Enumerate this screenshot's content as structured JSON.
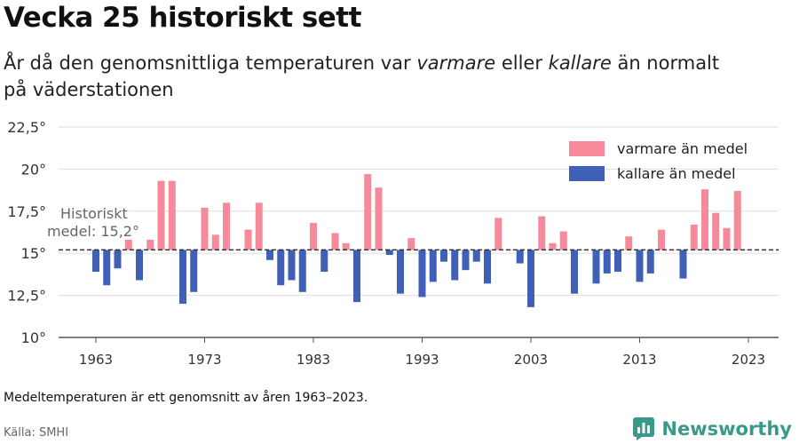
{
  "title": "Vecka 25 historiskt sett",
  "subtitle": {
    "part1": "År då den genomsnittliga temperaturen var ",
    "warm_word": "varmare",
    "part2": " eller ",
    "cold_word": "kallare",
    "part3": " än normalt",
    "line2": "på väderstationen"
  },
  "footnote": "Medeltemperaturen är ett genomsnitt av åren 1963–2023.",
  "source": "Källa: SMHI",
  "brand": {
    "name": "Newsworthy",
    "icon": "bar-chart-logo-icon"
  },
  "colors": {
    "warm": "#f78a9a",
    "cold": "#4060b8",
    "grid": "#dddddd",
    "axis": "#555555",
    "text": "#333333"
  },
  "chart_data": {
    "type": "bar",
    "baseline": 15.2,
    "baseline_label_line1": "Historiskt",
    "baseline_label_line2": "medel: 15,2°",
    "ylim": [
      10,
      22.5
    ],
    "yticks": [
      10,
      12.5,
      15,
      17.5,
      20,
      22.5
    ],
    "ytick_labels": [
      "10°",
      "12,5°",
      "15°",
      "17,5°",
      "20°",
      "22,5°"
    ],
    "xticks": [
      1963,
      1973,
      1983,
      1993,
      2003,
      2013,
      2023
    ],
    "xtick_labels": [
      "1963",
      "1973",
      "1983",
      "1993",
      "2003",
      "2013",
      "2023"
    ],
    "legend": {
      "position": "top-right",
      "items": [
        {
          "label": "varmare än medel",
          "color": "#f78a9a"
        },
        {
          "label": "kallare än medel",
          "color": "#4060b8"
        }
      ]
    },
    "x": [
      1963,
      1964,
      1965,
      1966,
      1967,
      1968,
      1969,
      1970,
      1971,
      1972,
      1973,
      1974,
      1975,
      1976,
      1977,
      1978,
      1979,
      1980,
      1981,
      1982,
      1983,
      1984,
      1985,
      1986,
      1987,
      1988,
      1989,
      1990,
      1991,
      1992,
      1993,
      1994,
      1995,
      1996,
      1997,
      1998,
      1999,
      2000,
      2001,
      2002,
      2003,
      2004,
      2005,
      2006,
      2007,
      2008,
      2009,
      2010,
      2011,
      2012,
      2013,
      2014,
      2015,
      2016,
      2017,
      2018,
      2019,
      2020,
      2021,
      2022,
      2023
    ],
    "values": [
      13.9,
      13.1,
      14.1,
      15.8,
      13.4,
      15.8,
      19.3,
      19.3,
      12.0,
      12.7,
      17.7,
      16.1,
      18.0,
      15.2,
      16.4,
      18.0,
      14.6,
      13.1,
      13.4,
      12.7,
      16.8,
      13.9,
      16.2,
      15.6,
      12.1,
      19.7,
      18.9,
      14.9,
      12.6,
      15.9,
      12.4,
      13.3,
      14.5,
      13.4,
      14.0,
      14.5,
      13.2,
      17.1,
      15.2,
      14.4,
      11.8,
      17.2,
      15.6,
      16.3,
      12.6,
      15.2,
      13.2,
      13.8,
      13.9,
      16.0,
      13.3,
      13.8,
      16.4,
      15.2,
      13.5,
      16.7,
      18.8,
      17.4,
      16.5,
      18.7,
      15.2
    ]
  }
}
